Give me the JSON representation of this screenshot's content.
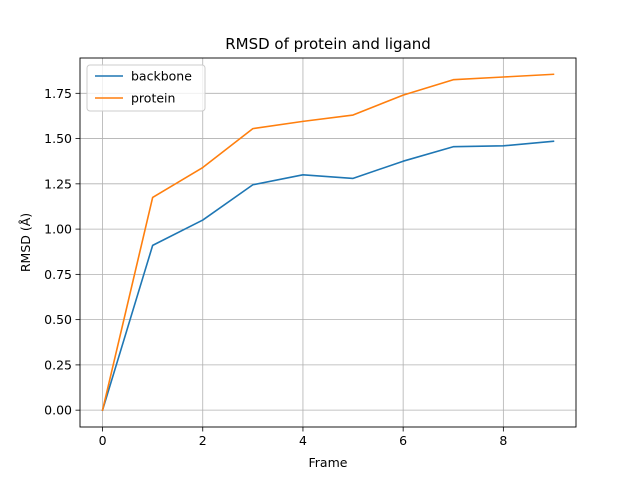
{
  "chart_data": {
    "type": "line",
    "title": "RMSD of protein and ligand",
    "xlabel": "Frame",
    "ylabel": "RMSD (Å)",
    "x": [
      0,
      1,
      2,
      3,
      4,
      5,
      6,
      7,
      8,
      9
    ],
    "xlim": [
      -0.45,
      9.45
    ],
    "ylim": [
      -0.093,
      1.945
    ],
    "xticks": [
      0,
      2,
      4,
      6,
      8
    ],
    "xtick_labels": [
      "0",
      "2",
      "4",
      "6",
      "8"
    ],
    "yticks": [
      0.0,
      0.25,
      0.5,
      0.75,
      1.0,
      1.25,
      1.5,
      1.75
    ],
    "ytick_labels": [
      "0.00",
      "0.25",
      "0.50",
      "0.75",
      "1.00",
      "1.25",
      "1.50",
      "1.75"
    ],
    "grid": true,
    "legend_position": "top-left",
    "series": [
      {
        "name": "backbone",
        "color": "#1f77b4",
        "values": [
          0.0,
          0.91,
          1.05,
          1.245,
          1.3,
          1.28,
          1.375,
          1.455,
          1.46,
          1.485
        ]
      },
      {
        "name": "protein",
        "color": "#ff7f0e",
        "values": [
          0.0,
          1.175,
          1.34,
          1.555,
          1.595,
          1.63,
          1.74,
          1.825,
          1.84,
          1.855
        ]
      }
    ]
  }
}
